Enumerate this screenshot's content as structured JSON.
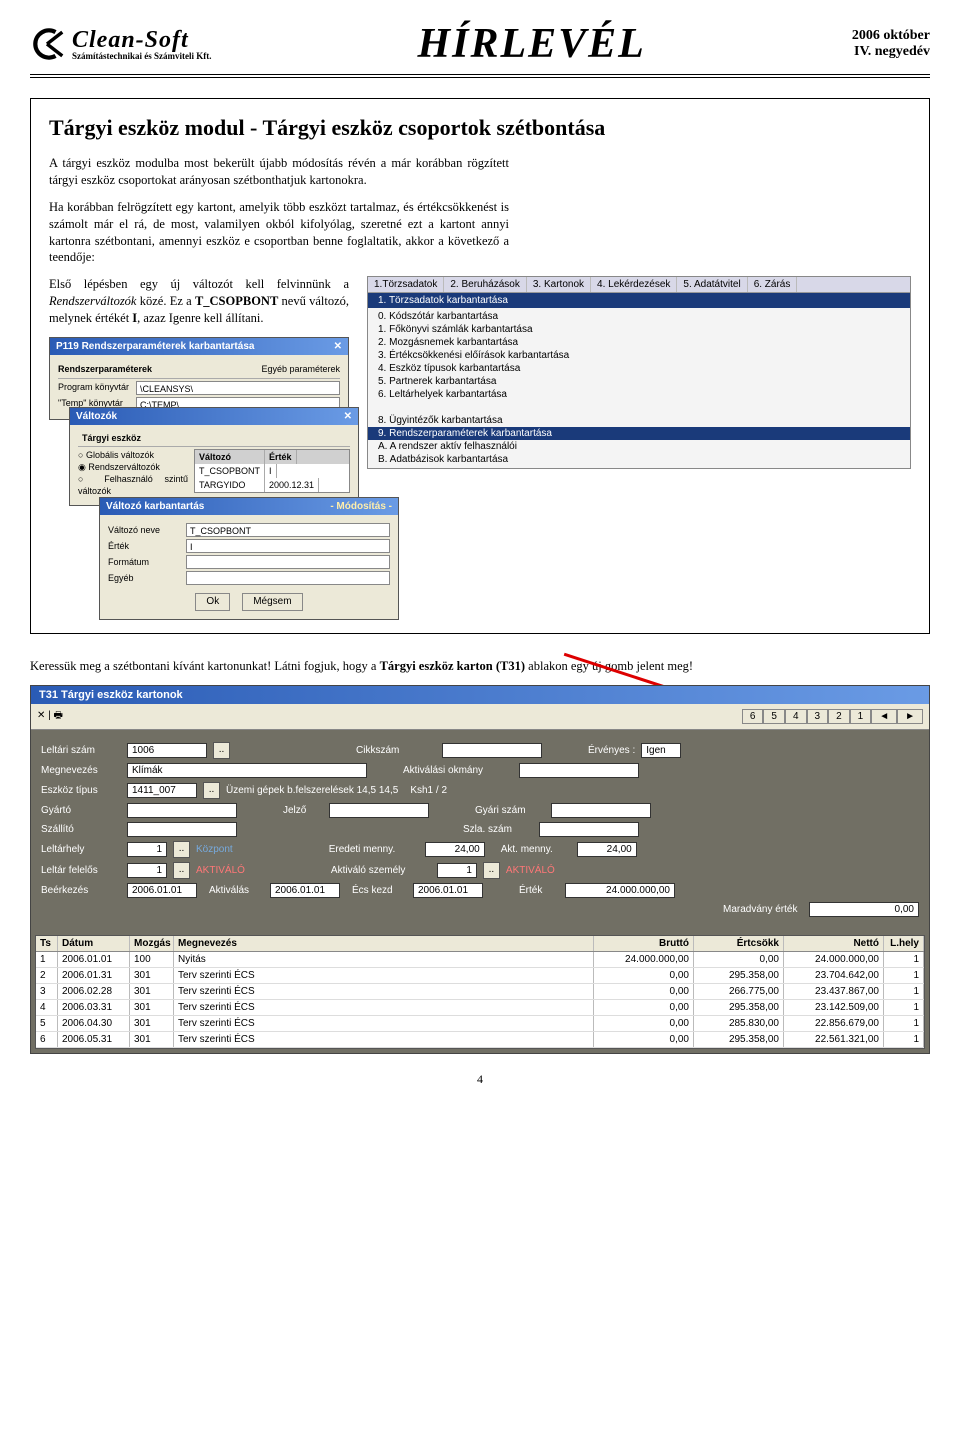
{
  "header": {
    "logo_name": "Clean-Soft",
    "logo_sub": "Számítástechnikai és Számviteli Kft.",
    "title": "HÍRLEVÉL",
    "date_line1": "2006 október",
    "date_line2": "IV. negyedév"
  },
  "article": {
    "title": "Tárgyi eszköz modul - Tárgyi eszköz csoportok szétbontása",
    "p1": "A tárgyi eszköz modulba most bekerült újabb módosítás révén a már korábban rögzített tárgyi eszköz csoportokat arányosan szétbonthatjuk kartonokra.",
    "p2": "Ha korábban felrögzített egy kartont, amelyik több eszközt tartalmaz, és értékcsökkenést is számolt már el rá, de most, valamilyen okból kifolyólag, szeretné ezt a kartont annyi kartonra szétbontani, amennyi eszköz e csoportban benne foglaltatik, akkor a következő a teendője:",
    "p3a": "Első lépésben egy új változót kell felvinnünk a ",
    "p3b": "Rendszerváltozók",
    "p3c": " közé. Ez a ",
    "p3d": "T_CSOPBONT",
    "p3e": " nevű változó, melynek értékét ",
    "p3f": "I",
    "p3g": ", azaz Igenre kell állítani.",
    "below_a": "Keressük meg a szétbontani kívánt kartonunkat! Látni fogjuk, hogy a ",
    "below_b": "Tárgyi eszköz karton (T31)",
    "below_c": " ablakon egy új gomb jelent meg!"
  },
  "menu": {
    "top": [
      "1.Törzsadatok",
      "2. Beruházások",
      "3. Kartonok",
      "4. Lekérdezések",
      "5. Adatátvitel",
      "6. Zárás"
    ],
    "sub": "1. Törzsadatok karbantartása",
    "items": [
      "0. Kódszótár karbantartása",
      "1. Főkönyvi számlák karbantartása",
      "2. Mozgásnemek karbantartása",
      "3. Értékcsökkenési előírások karbantartása",
      "4. Eszköz típusok karbantartása",
      "5. Partnerek karbantartása",
      "6. Leltárhelyek karbantartása",
      "",
      "8. Ügyintézők karbantartása",
      "9. Rendszerparaméterek karbantartása",
      "A. A rendszer aktív felhasználói",
      "B. Adatbázisok karbantartása"
    ],
    "highlight_index": 9
  },
  "win1": {
    "title": "P119 Rendszerparaméterek karbantartása",
    "tab1": "Rendszerparaméterek",
    "tab2": "Egyéb paraméterek",
    "l1": "Program könyvtár",
    "v1": "\\CLEANSYS\\",
    "l2": "\"Temp\" könyvtár",
    "v2": "C:\\TEMP\\"
  },
  "win2": {
    "title": "Változók",
    "tab": "Tárgyi eszköz",
    "r1": "Globális változók",
    "r2": "Rendszerváltozók",
    "r3": "Felhasználó szintű változók",
    "h1": "Változó",
    "h2": "Érték",
    "row1a": "T_CSOPBONT",
    "row1b": "I",
    "row2a": "TARGYIDO",
    "row2b": "2000.12.31"
  },
  "win3": {
    "title": "Változó karbantartás",
    "mode": "- Módosítás -",
    "l1": "Változó neve",
    "v1": "T_CSOPBONT",
    "l2": "Érték",
    "v2": "I",
    "l3": "Formátum",
    "v3": "",
    "l4": "Egyéb",
    "v4": "",
    "ok": "Ok",
    "cancel": "Mégsem"
  },
  "t31": {
    "title": "T31 Tárgyi eszköz kartonok",
    "nav": [
      "6",
      "5",
      "4",
      "3",
      "2",
      "1",
      "◄",
      "►"
    ],
    "toolbar_icons": "✕ | 🖶",
    "form": {
      "leltari_lbl": "Leltári szám",
      "leltari": "1006",
      "cikk_lbl": "Cikkszám",
      "cikk": "",
      "ervenyes_lbl": "Érvényes :",
      "ervenyes": "Igen",
      "megnev_lbl": "Megnevezés",
      "megnev": "Klímák",
      "aktok_lbl": "Aktiválási okmány",
      "aktok": "",
      "etip_lbl": "Eszköz típus",
      "etip": "1411_007",
      "etip_txt": "Üzemi gépek b.felszerelések 14,5 14,5",
      "etip_ksh": "Ksh1 / 2",
      "gyarto_lbl": "Gyártó",
      "gyarto": "",
      "jelzo_lbl": "Jelző",
      "jelzo": "",
      "gyszam_lbl": "Gyári szám",
      "gyszam": "",
      "szall_lbl": "Szállító",
      "szall": "",
      "szla_lbl": "Szla. szám",
      "szla": "",
      "lhely_lbl": "Leltárhely",
      "lhely": "1",
      "lhely_txt": "Központ",
      "eredm_lbl": "Eredeti menny.",
      "eredm": "24,00",
      "aktm_lbl": "Akt. menny.",
      "aktm": "24,00",
      "lfel_lbl": "Leltár felelős",
      "lfel": "1",
      "lfel_txt": "AKTIVÁLÓ",
      "aktsz_lbl": "Aktiváló személy",
      "aktsz": "1",
      "aktsz_txt": "AKTIVÁLÓ",
      "beerk_lbl": "Beérkezés",
      "beerk": "2006.01.01",
      "aktiv_lbl": "Aktiválás",
      "aktiv": "2006.01.01",
      "ecs_lbl": "Écs kezd",
      "ecs": "2006.01.01",
      "ertek_lbl": "Érték",
      "ertek": "24.000.000,00",
      "marad_lbl": "Maradvány érték",
      "marad": "0,00"
    },
    "thead": [
      "Ts",
      "Dátum",
      "Mozgás",
      "Megnevezés",
      "Bruttó",
      "Értcsökk",
      "Nettó",
      "L.hely"
    ],
    "rows": [
      [
        "1",
        "2006.01.01",
        "100",
        "Nyitás",
        "24.000.000,00",
        "0,00",
        "24.000.000,00",
        "1"
      ],
      [
        "2",
        "2006.01.31",
        "301",
        "Terv szerinti ÉCS",
        "0,00",
        "295.358,00",
        "23.704.642,00",
        "1"
      ],
      [
        "3",
        "2006.02.28",
        "301",
        "Terv szerinti ÉCS",
        "0,00",
        "266.775,00",
        "23.437.867,00",
        "1"
      ],
      [
        "4",
        "2006.03.31",
        "301",
        "Terv szerinti ÉCS",
        "0,00",
        "295.358,00",
        "23.142.509,00",
        "1"
      ],
      [
        "5",
        "2006.04.30",
        "301",
        "Terv szerinti ÉCS",
        "0,00",
        "285.830,00",
        "22.856.679,00",
        "1"
      ],
      [
        "6",
        "2006.05.31",
        "301",
        "Terv szerinti ÉCS",
        "0,00",
        "295.358,00",
        "22.561.321,00",
        "1"
      ]
    ]
  },
  "page_number": "4"
}
